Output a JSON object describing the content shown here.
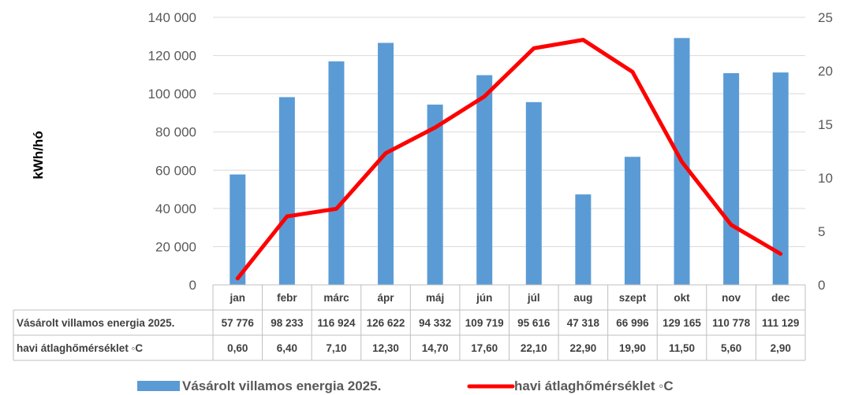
{
  "chart_data": {
    "type": "bar",
    "ylabel": "kWh/hó",
    "categories": [
      "jan",
      "febr",
      "márc",
      "ápr",
      "máj",
      "jún",
      "júl",
      "aug",
      "szept",
      "okt",
      "nov",
      "dec"
    ],
    "series": [
      {
        "name": "Vásárolt villamos energia 2025.",
        "type": "bar",
        "axis": "left",
        "color": "#5B9BD5",
        "values": [
          57776,
          98233,
          116924,
          126622,
          94332,
          109719,
          95616,
          47318,
          66996,
          129165,
          110778,
          111129
        ],
        "labels": [
          "57 776",
          "98 233",
          "116 924",
          "126 622",
          "94 332",
          "109 719",
          "95 616",
          "47 318",
          "66 996",
          "129 165",
          "110 778",
          "111 129"
        ]
      },
      {
        "name": "havi átlaghőmérséklet ◦C",
        "type": "line",
        "axis": "right",
        "color": "#FF0000",
        "values": [
          0.6,
          6.4,
          7.1,
          12.3,
          14.7,
          17.6,
          22.1,
          22.9,
          19.9,
          11.5,
          5.6,
          2.9
        ],
        "labels": [
          "0,60",
          "6,40",
          "7,10",
          "12,30",
          "14,70",
          "17,60",
          "22,10",
          "22,90",
          "19,90",
          "11,50",
          "5,60",
          "2,90"
        ]
      }
    ],
    "ylim": [
      0,
      140000
    ],
    "y2lim": [
      0,
      25
    ],
    "yticks": [
      "0",
      "20 000",
      "40 000",
      "60 000",
      "80 000",
      "100 000",
      "120 000",
      "140 000"
    ],
    "y2ticks": [
      "0",
      "5",
      "10",
      "15",
      "20",
      "25"
    ],
    "grid": true,
    "legend": "bottom",
    "data_table": true
  }
}
